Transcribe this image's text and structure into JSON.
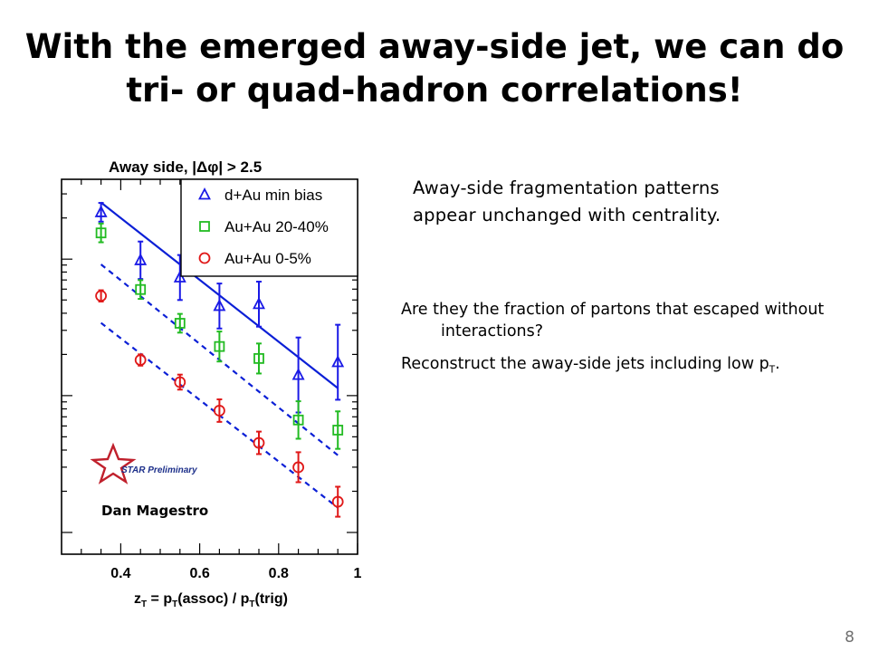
{
  "slide": {
    "title_lines": [
      "With the emerged away-side jet, we can do",
      "tri- or quad-hadron correlations!"
    ],
    "observation_lines": [
      "Away-side fragmentation patterns",
      "appear unchanged with centrality."
    ],
    "bullets": [
      {
        "text": "Are they the fraction of partons that escaped without interactions?",
        "sub": "",
        "tail": ""
      },
      {
        "text": "Reconstruct the away-side jets including low p",
        "sub": "T",
        "tail": "."
      }
    ],
    "page_number": "8"
  },
  "chart_data": {
    "type": "scatter",
    "title": "Away side, |Δφ| > 2.5",
    "xlabel": "z_T = p_T(assoc) / p_T(trig)",
    "ylabel": "",
    "xlim": [
      0.25,
      1.0
    ],
    "ylim": [
      0,
      1
    ],
    "xscale": "linear",
    "y_tick_labels": "none (log-scale axis, values read as relative heights)",
    "x_ticks": [
      "0.4",
      "0.6",
      "0.8",
      "1"
    ],
    "legend_position": "top-right",
    "annotations": [
      "Dan Magestro",
      "STAR Preliminary"
    ],
    "grid": false,
    "series": [
      {
        "name": "d+Au min bias",
        "marker": "triangle",
        "color": "#1a1ae6",
        "x": [
          0.35,
          0.45,
          0.55,
          0.65,
          0.75,
          0.85,
          0.95
        ],
        "y": [
          0.912,
          0.784,
          0.738,
          0.662,
          0.667,
          0.478,
          0.512
        ],
        "err": [
          0.025,
          0.05,
          0.06,
          0.06,
          0.06,
          0.1,
          0.1
        ],
        "fit": {
          "x": [
            0.35,
            0.95
          ],
          "y": [
            0.938,
            0.443
          ]
        }
      },
      {
        "name": "Au+Au 20-40%",
        "marker": "square",
        "color": "#22bb22",
        "x": [
          0.35,
          0.45,
          0.55,
          0.65,
          0.75,
          0.85,
          0.95
        ],
        "y": [
          0.857,
          0.706,
          0.616,
          0.554,
          0.522,
          0.358,
          0.331
        ],
        "err": [
          0.025,
          0.025,
          0.025,
          0.04,
          0.04,
          0.05,
          0.05
        ],
        "fit": {
          "x": [
            0.35,
            0.95
          ],
          "y": [
            0.773,
            0.264
          ]
        }
      },
      {
        "name": "Au+Au 0-5%",
        "marker": "circle",
        "color": "#e01818",
        "x": [
          0.35,
          0.45,
          0.55,
          0.65,
          0.75,
          0.85,
          0.95
        ],
        "y": [
          0.689,
          0.518,
          0.459,
          0.383,
          0.297,
          0.232,
          0.14
        ],
        "err": [
          0.015,
          0.015,
          0.02,
          0.03,
          0.03,
          0.04,
          0.04
        ],
        "fit": {
          "x": [
            0.35,
            0.95
          ],
          "y": [
            0.617,
            0.124
          ]
        }
      }
    ]
  }
}
